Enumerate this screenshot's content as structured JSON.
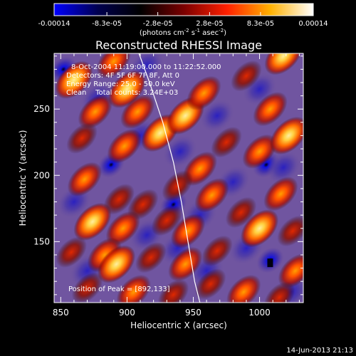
{
  "colorbar": {
    "tick_labels": [
      "-0.00014",
      "-8.3e-05",
      "-2.8e-05",
      "2.8e-05",
      "8.3e-05",
      "0.00014"
    ],
    "tick_values": [
      -0.00014,
      -8.3e-05,
      -2.8e-05,
      2.8e-05,
      8.3e-05,
      0.00014
    ],
    "units_label_parts": [
      "(photons cm",
      "-2",
      " s",
      "-1",
      " asec",
      "-2",
      ")"
    ],
    "range": [
      -0.00014,
      0.00014
    ],
    "colors": [
      "#0000ff",
      "#000050",
      "#000000",
      "#7a0000",
      "#ff2000",
      "#ffb000",
      "#ffffff"
    ]
  },
  "chart_data": {
    "type": "heatmap",
    "title": "Reconstructed RHESSI Image",
    "xlabel": "Heliocentric X (arcsec)",
    "ylabel": "Heliocentric Y (arcsec)",
    "xlim": [
      845,
      1033
    ],
    "ylim": [
      104,
      292
    ],
    "xticks": [
      850,
      900,
      950,
      1000
    ],
    "yticks": [
      150,
      200,
      250
    ],
    "image_colors": {
      "deep_low": "#1a0fd0",
      "low": "#3a2a9a",
      "background": "#7055a0",
      "dark": "#400000",
      "mid": "#d02000",
      "high": "#ff7a00",
      "peak": "#ffe050"
    },
    "info_lines": [
      "8-Oct-2004 11:19:00.000 to 11:22:52.000",
      "Detectors: 4F 5F 6F 7F 8F, Att 0",
      "Energy Range: 25.0 - 50.0 keV",
      "Clean    Total counts: 3.24E+03"
    ],
    "peak_label": "Position of Peak = [892,133]",
    "peak_position": [
      892,
      133
    ],
    "limb_curve": [
      [
        909,
        292
      ],
      [
        917,
        270
      ],
      [
        927,
        240
      ],
      [
        935,
        210
      ],
      [
        941,
        180
      ],
      [
        946,
        150
      ],
      [
        951,
        120
      ],
      [
        955,
        104
      ]
    ],
    "blobs": [
      {
        "x": 860,
        "y": 272,
        "level": "peak"
      },
      {
        "x": 890,
        "y": 286,
        "level": "high"
      },
      {
        "x": 876,
        "y": 248,
        "level": "high"
      },
      {
        "x": 900,
        "y": 265,
        "level": "peak"
      },
      {
        "x": 908,
        "y": 248,
        "level": "high"
      },
      {
        "x": 866,
        "y": 228,
        "level": "mid"
      },
      {
        "x": 898,
        "y": 222,
        "level": "high"
      },
      {
        "x": 925,
        "y": 232,
        "level": "peak"
      },
      {
        "x": 944,
        "y": 245,
        "level": "peak"
      },
      {
        "x": 958,
        "y": 262,
        "level": "high"
      },
      {
        "x": 990,
        "y": 275,
        "level": "mid"
      },
      {
        "x": 1018,
        "y": 290,
        "level": "peak"
      },
      {
        "x": 1008,
        "y": 250,
        "level": "high"
      },
      {
        "x": 868,
        "y": 197,
        "level": "high"
      },
      {
        "x": 894,
        "y": 182,
        "level": "mid"
      },
      {
        "x": 955,
        "y": 205,
        "level": "high"
      },
      {
        "x": 975,
        "y": 225,
        "level": "mid"
      },
      {
        "x": 1000,
        "y": 218,
        "level": "high"
      },
      {
        "x": 1022,
        "y": 230,
        "level": "peak"
      },
      {
        "x": 912,
        "y": 178,
        "level": "mid"
      },
      {
        "x": 938,
        "y": 192,
        "level": "mid"
      },
      {
        "x": 964,
        "y": 185,
        "level": "high"
      },
      {
        "x": 986,
        "y": 172,
        "level": "mid"
      },
      {
        "x": 1016,
        "y": 186,
        "level": "high"
      },
      {
        "x": 874,
        "y": 165,
        "level": "peak"
      },
      {
        "x": 897,
        "y": 160,
        "level": "high"
      },
      {
        "x": 930,
        "y": 166,
        "level": "mid"
      },
      {
        "x": 946,
        "y": 158,
        "level": "high"
      },
      {
        "x": 1000,
        "y": 160,
        "level": "peak"
      },
      {
        "x": 1025,
        "y": 158,
        "level": "mid"
      },
      {
        "x": 858,
        "y": 142,
        "level": "mid"
      },
      {
        "x": 883,
        "y": 140,
        "level": "high"
      },
      {
        "x": 918,
        "y": 138,
        "level": "mid"
      },
      {
        "x": 944,
        "y": 133,
        "level": "high"
      },
      {
        "x": 968,
        "y": 143,
        "level": "mid"
      },
      {
        "x": 1027,
        "y": 128,
        "level": "high"
      },
      {
        "x": 892,
        "y": 133,
        "level": "peak"
      },
      {
        "x": 870,
        "y": 115,
        "level": "mid"
      },
      {
        "x": 905,
        "y": 112,
        "level": "high"
      },
      {
        "x": 935,
        "y": 110,
        "level": "mid"
      },
      {
        "x": 963,
        "y": 118,
        "level": "mid"
      },
      {
        "x": 988,
        "y": 112,
        "level": "high"
      },
      {
        "x": 1015,
        "y": 108,
        "level": "mid"
      }
    ],
    "holes": [
      {
        "x": 852,
        "y": 280,
        "level": "deep_low"
      },
      {
        "x": 878,
        "y": 258,
        "level": "low"
      },
      {
        "x": 915,
        "y": 283,
        "level": "low"
      },
      {
        "x": 888,
        "y": 208,
        "level": "deep_low"
      },
      {
        "x": 910,
        "y": 230,
        "level": "low"
      },
      {
        "x": 940,
        "y": 218,
        "level": "low"
      },
      {
        "x": 968,
        "y": 245,
        "level": "low"
      },
      {
        "x": 1000,
        "y": 265,
        "level": "low"
      },
      {
        "x": 1005,
        "y": 208,
        "level": "deep_low"
      },
      {
        "x": 1018,
        "y": 206,
        "level": "low"
      },
      {
        "x": 935,
        "y": 178,
        "level": "deep_low"
      },
      {
        "x": 955,
        "y": 170,
        "level": "low"
      },
      {
        "x": 980,
        "y": 195,
        "level": "low"
      },
      {
        "x": 915,
        "y": 155,
        "level": "low"
      },
      {
        "x": 860,
        "y": 180,
        "level": "low"
      },
      {
        "x": 1008,
        "y": 136,
        "level": "deep_low"
      },
      {
        "x": 990,
        "y": 145,
        "level": "low"
      },
      {
        "x": 938,
        "y": 145,
        "level": "low"
      },
      {
        "x": 870,
        "y": 128,
        "level": "low"
      },
      {
        "x": 960,
        "y": 128,
        "level": "low"
      },
      {
        "x": 1024,
        "y": 112,
        "level": "low"
      }
    ]
  },
  "footer": {
    "timestamp": "14-Jun-2013 21:13"
  }
}
